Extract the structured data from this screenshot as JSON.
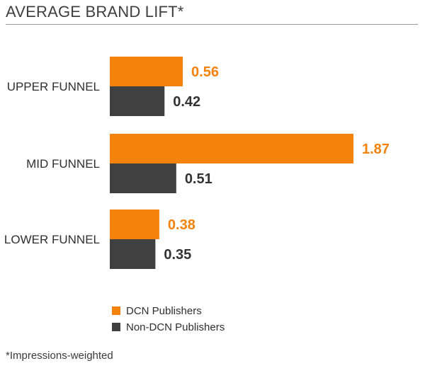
{
  "chart_data": {
    "type": "bar",
    "orientation": "horizontal",
    "title": "AVERAGE BRAND LIFT*",
    "categories": [
      "UPPER FUNNEL",
      "MID FUNNEL",
      "LOWER FUNNEL"
    ],
    "series": [
      {
        "name": "DCN Publishers",
        "values": [
          0.56,
          1.87,
          0.38
        ],
        "color": "#f5820b"
      },
      {
        "name": "Non-DCN Publishers",
        "values": [
          0.42,
          0.51,
          0.35
        ],
        "color": "#404040"
      }
    ],
    "value_labels": {
      "DCN Publishers": [
        "0.56",
        "1.87",
        "0.38"
      ],
      "Non-DCN Publishers": [
        "0.42",
        "0.51",
        "0.35"
      ]
    },
    "xlim": [
      0,
      1.87
    ],
    "grid": false,
    "legend_position": "bottom-left"
  },
  "footnote": "*Impressions-weighted"
}
